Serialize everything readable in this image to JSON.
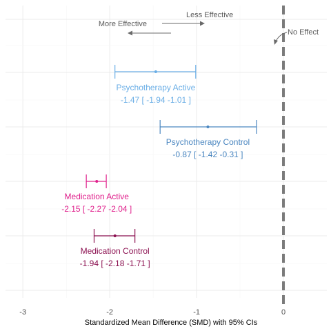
{
  "chart_data": {
    "type": "forest",
    "xlabel": "Standardized Mean Difference (SMD) with 95% CIs",
    "xlim": [
      -3.2,
      0.5
    ],
    "xticks": [
      -3,
      -2,
      -1,
      0
    ],
    "tick_labels": [
      "-3",
      "-2",
      "-1",
      "0"
    ],
    "reference_line": {
      "x": 0,
      "style": "dashed",
      "color": "#7a7a7a",
      "label": "No Effect"
    },
    "direction_annotations": {
      "more_effective": "More Effective",
      "less_effective": "Less Effective"
    },
    "series": [
      {
        "name": "Psychotherapy Active",
        "estimate": -1.47,
        "lower": -1.94,
        "upper": -1.01,
        "color": "#6aaee6",
        "label_line2": "-1.47 [ -1.94 -1.01 ]"
      },
      {
        "name": "Psychotherapy Control",
        "estimate": -0.87,
        "lower": -1.42,
        "upper": -0.31,
        "color": "#4a86c0",
        "label_line2": "-0.87 [ -1.42 -0.31 ]"
      },
      {
        "name": "Medication Active",
        "estimate": -2.15,
        "lower": -2.27,
        "upper": -2.04,
        "color": "#e0208c",
        "label_line2": "-2.15 [ -2.27 -2.04 ]"
      },
      {
        "name": "Medication Control",
        "estimate": -1.94,
        "lower": -2.18,
        "upper": -1.71,
        "color": "#8b1050",
        "label_line2": "-1.94 [ -2.18 -1.71 ]"
      }
    ]
  }
}
